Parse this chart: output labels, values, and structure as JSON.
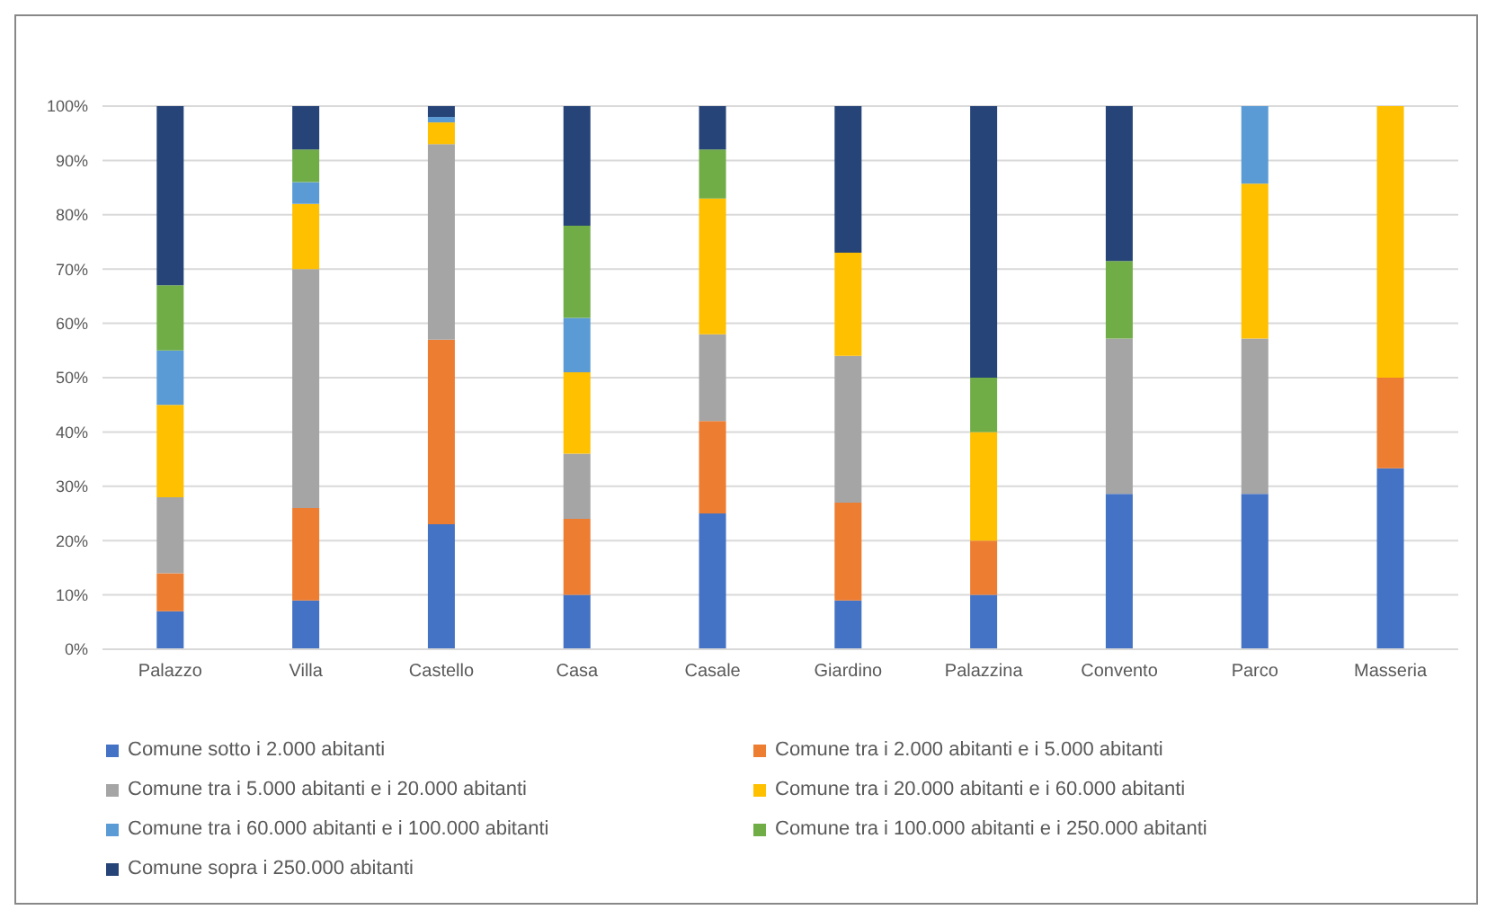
{
  "chart_data": {
    "type": "bar",
    "stacked": true,
    "categories": [
      "Palazzo",
      "Villa",
      "Castello",
      "Casa",
      "Casale",
      "Giardino",
      "Palazzina",
      "Convento",
      "Parco",
      "Masseria"
    ],
    "series": [
      {
        "name": "Comune sotto i 2.000 abitanti",
        "color": "#4472c4",
        "values": [
          7,
          9,
          23,
          10,
          25,
          9,
          10,
          28.6,
          28.6,
          33.3
        ]
      },
      {
        "name": "Comune tra i 2.000 abitanti e i 5.000 abitanti",
        "color": "#ed7d31",
        "values": [
          7,
          17,
          34,
          14,
          17,
          18,
          10,
          0,
          0,
          16.7
        ]
      },
      {
        "name": "Comune tra i 5.000 abitanti e i 20.000 abitanti",
        "color": "#a5a5a5",
        "values": [
          14,
          44,
          36,
          12,
          16,
          27,
          0,
          28.6,
          28.6,
          0
        ]
      },
      {
        "name": "Comune tra i 20.000 abitanti e i 60.000 abitanti",
        "color": "#ffc000",
        "values": [
          17,
          12,
          4,
          15,
          25,
          19,
          20,
          0,
          28.5,
          50
        ]
      },
      {
        "name": "Comune tra i 60.000 abitanti e i 100.000 abitanti",
        "color": "#5b9bd5",
        "values": [
          10,
          4,
          1,
          10,
          0,
          0,
          0,
          0,
          14.3,
          0
        ]
      },
      {
        "name": "Comune tra i 100.000 abitanti e i 250.000 abitanti",
        "color": "#70ad47",
        "values": [
          12,
          6,
          0,
          17,
          9,
          0,
          10,
          14.3,
          0,
          0
        ]
      },
      {
        "name": "Comune sopra i 250.000 abitanti",
        "color": "#264478",
        "values": [
          33,
          8,
          2,
          22,
          8,
          27,
          50,
          28.5,
          0,
          0
        ]
      }
    ],
    "ylim": [
      0,
      100
    ],
    "yticks": [
      {
        "value": 0,
        "label": "0%"
      },
      {
        "value": 10,
        "label": "10%"
      },
      {
        "value": 20,
        "label": "20%"
      },
      {
        "value": 30,
        "label": "30%"
      },
      {
        "value": 40,
        "label": "40%"
      },
      {
        "value": 50,
        "label": "50%"
      },
      {
        "value": 60,
        "label": "60%"
      },
      {
        "value": 70,
        "label": "70%"
      },
      {
        "value": 80,
        "label": "80%"
      },
      {
        "value": 90,
        "label": "90%"
      },
      {
        "value": 100,
        "label": "100%"
      }
    ],
    "grid": "y",
    "legend": "bottom"
  }
}
